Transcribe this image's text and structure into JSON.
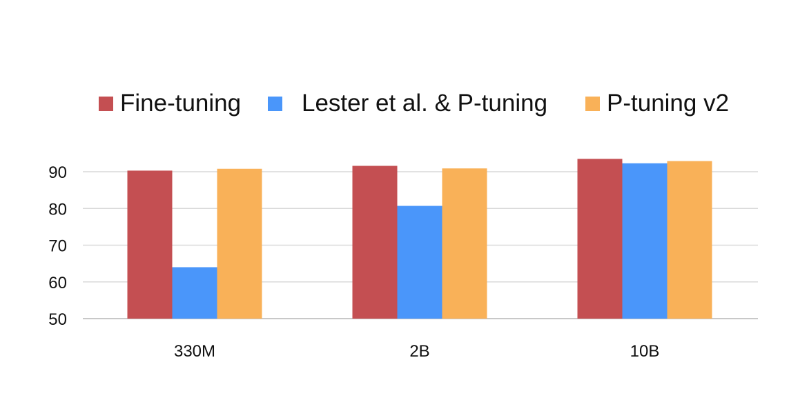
{
  "chart_data": {
    "type": "bar",
    "categories": [
      "330M",
      "2B",
      "10B"
    ],
    "series": [
      {
        "name": "Fine-tuning",
        "color": "#c44f52",
        "values": [
          90.3,
          91.6,
          93.5
        ]
      },
      {
        "name": "Lester et al. & P-tuning",
        "color": "#4a96fa",
        "values": [
          64.0,
          80.7,
          92.3
        ]
      },
      {
        "name": "P-tuning v2",
        "color": "#f9b158",
        "values": [
          90.8,
          90.9,
          92.9
        ]
      }
    ],
    "yticks": [
      "50",
      "60",
      "70",
      "80",
      "90"
    ],
    "ylim": [
      50,
      95
    ],
    "grid": true,
    "legend_position": "top"
  }
}
